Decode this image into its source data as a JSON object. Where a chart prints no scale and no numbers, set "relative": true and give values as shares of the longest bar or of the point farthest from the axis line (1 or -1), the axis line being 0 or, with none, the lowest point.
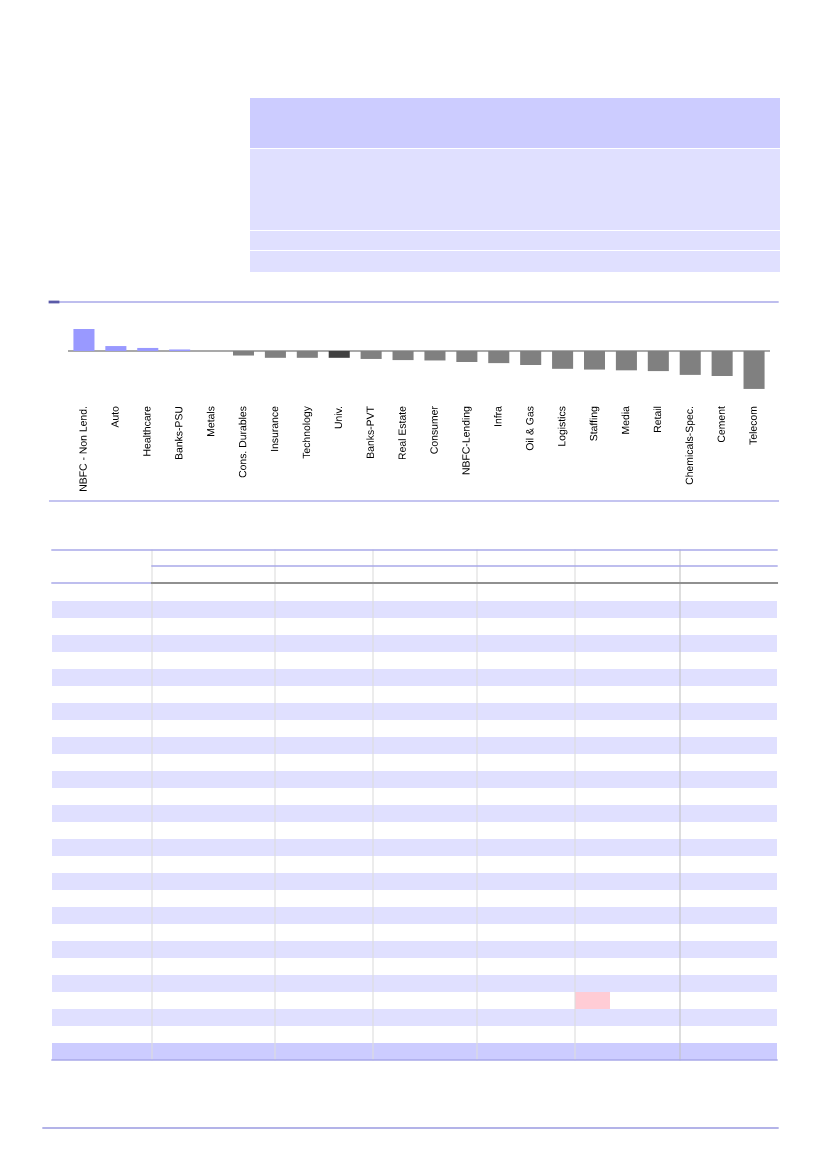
{
  "chart_data": {
    "type": "bar",
    "relative": true,
    "tick_labels": "x",
    "categories": [
      "NBFC - Non Lend.",
      "Auto",
      "Healthcare",
      "Banks-PSU",
      "Metals",
      "Cons. Durables",
      "Insurance",
      "Technology",
      "Univ.",
      "Banks-PVT",
      "Real Estate",
      "Consumer",
      "NBFC-Lending",
      "Infra",
      "Oil & Gas",
      "Logistics",
      "Staffing",
      "Media",
      "Retail",
      "Chemicals-Spec.",
      "Cement",
      "Telecom"
    ],
    "values": [
      0.58,
      0.13,
      0.08,
      0.04,
      0,
      -0.12,
      -0.18,
      -0.18,
      -0.18,
      -0.21,
      -0.24,
      -0.25,
      -0.29,
      -0.32,
      -0.37,
      -0.47,
      -0.49,
      -0.51,
      -0.53,
      -0.63,
      -0.66,
      -1
    ],
    "colors": [
      "#9999ff",
      "#9999ff",
      "#9999ff",
      "#9999ff",
      "#808080",
      "#808080",
      "#808080",
      "#808080",
      "#404040",
      "#808080",
      "#808080",
      "#808080",
      "#808080",
      "#808080",
      "#808080",
      "#808080",
      "#808080",
      "#808080",
      "#808080",
      "#808080",
      "#808080",
      "#808080"
    ]
  }
}
